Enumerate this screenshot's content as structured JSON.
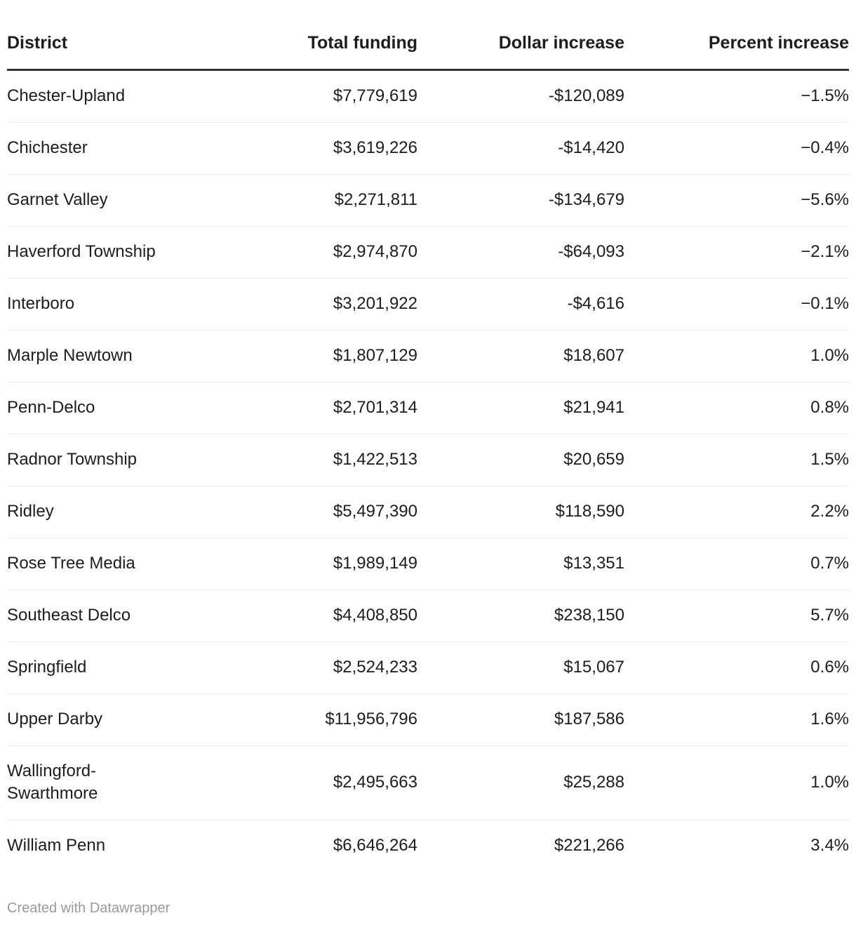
{
  "chart_data": {
    "type": "table",
    "columns": [
      "District",
      "Total funding",
      "Dollar increase",
      "Percent increase"
    ],
    "rows": [
      [
        "Chester-Upland",
        "$7,779,619",
        "-$120,089",
        "−1.5%"
      ],
      [
        "Chichester",
        "$3,619,226",
        "-$14,420",
        "−0.4%"
      ],
      [
        "Garnet Valley",
        "$2,271,811",
        "-$134,679",
        "−5.6%"
      ],
      [
        "Haverford Township",
        "$2,974,870",
        "-$64,093",
        "−2.1%"
      ],
      [
        "Interboro",
        "$3,201,922",
        "-$4,616",
        "−0.1%"
      ],
      [
        "Marple Newtown",
        "$1,807,129",
        "$18,607",
        "1.0%"
      ],
      [
        "Penn-Delco",
        "$2,701,314",
        "$21,941",
        "0.8%"
      ],
      [
        "Radnor Township",
        "$1,422,513",
        "$20,659",
        "1.5%"
      ],
      [
        "Ridley",
        "$5,497,390",
        "$118,590",
        "2.2%"
      ],
      [
        "Rose Tree Media",
        "$1,989,149",
        "$13,351",
        "0.7%"
      ],
      [
        "Southeast Delco",
        "$4,408,850",
        "$238,150",
        "5.7%"
      ],
      [
        "Springfield",
        "$2,524,233",
        "$15,067",
        "0.6%"
      ],
      [
        "Upper Darby",
        "$11,956,796",
        "$187,586",
        "1.6%"
      ],
      [
        "Wallingford-Swarthmore",
        "$2,495,663",
        "$25,288",
        "1.0%"
      ],
      [
        "William Penn",
        "$6,646,264",
        "$221,266",
        "3.4%"
      ]
    ]
  },
  "footer": {
    "credit": "Created with Datawrapper"
  },
  "colors": {
    "background": "#ffffff",
    "text": "#1d1d1d",
    "header_border": "#333333",
    "row_border": "#ececec",
    "credit": "#9a9a9a"
  }
}
